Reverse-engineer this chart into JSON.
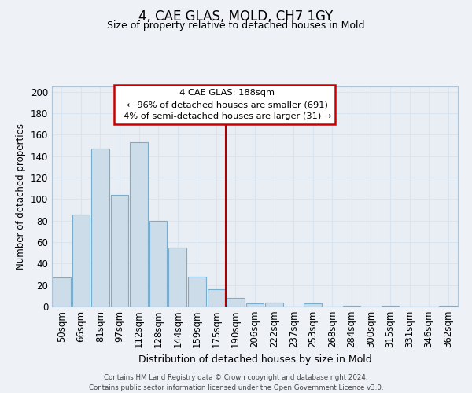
{
  "title": "4, CAE GLAS, MOLD, CH7 1GY",
  "subtitle": "Size of property relative to detached houses in Mold",
  "xlabel": "Distribution of detached houses by size in Mold",
  "ylabel": "Number of detached properties",
  "bar_labels": [
    "50sqm",
    "66sqm",
    "81sqm",
    "97sqm",
    "112sqm",
    "128sqm",
    "144sqm",
    "159sqm",
    "175sqm",
    "190sqm",
    "206sqm",
    "222sqm",
    "237sqm",
    "253sqm",
    "268sqm",
    "284sqm",
    "300sqm",
    "315sqm",
    "331sqm",
    "346sqm",
    "362sqm"
  ],
  "bar_values": [
    27,
    86,
    147,
    104,
    153,
    80,
    55,
    28,
    16,
    8,
    3,
    4,
    0,
    3,
    0,
    1,
    0,
    1,
    0,
    0,
    1
  ],
  "bar_color": "#ccdce8",
  "bar_edge_color": "#7aadcc",
  "vline_color": "#aa0000",
  "ylim": [
    0,
    205
  ],
  "yticks": [
    0,
    20,
    40,
    60,
    80,
    100,
    120,
    140,
    160,
    180,
    200
  ],
  "annotation_title": "4 CAE GLAS: 188sqm",
  "annotation_line1": "← 96% of detached houses are smaller (691)",
  "annotation_line2": "4% of semi-detached houses are larger (31) →",
  "annotation_box_color": "#ffffff",
  "annotation_box_edge": "#cc0000",
  "footer1": "Contains HM Land Registry data © Crown copyright and database right 2024.",
  "footer2": "Contains public sector information licensed under the Open Government Licence v3.0.",
  "background_color": "#eef2f6",
  "grid_color": "#d8e4f0",
  "plot_bg_color": "#e8eef4"
}
